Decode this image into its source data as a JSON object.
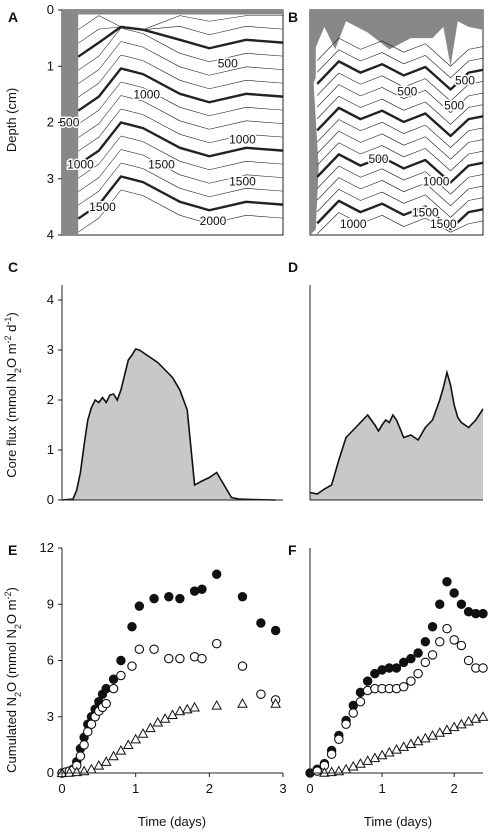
{
  "panels": {
    "a": "A",
    "b": "B",
    "c": "C",
    "d": "D",
    "e": "E",
    "f": "F"
  },
  "axes": {
    "depth_label": "Depth (cm)",
    "flux_label_parts": [
      "Core flux (mmol N",
      "2",
      "O m",
      "-2",
      " d",
      "-1",
      ")"
    ],
    "cum_label_parts": [
      "Cumulated N",
      "2",
      "O (mmol N",
      "2",
      "O m",
      "-2",
      ")"
    ],
    "time_label": "Time (days)",
    "depth_ticks": [
      "0",
      "1",
      "2",
      "3",
      "4"
    ],
    "flux_ticks": [
      "0",
      "1",
      "2",
      "3",
      "4"
    ],
    "cum_ticks": [
      "0",
      "3",
      "6",
      "9",
      "12"
    ],
    "time_ticks_left": [
      "0",
      "1",
      "2",
      "3"
    ],
    "time_ticks_right": [
      "0",
      "1",
      "2"
    ]
  },
  "chart_data": [
    {
      "panel": "A",
      "type": "contour",
      "ylabel": "Depth (cm)",
      "xlim": [
        0,
        3
      ],
      "ylim": [
        0,
        4
      ],
      "contour_labels": [
        {
          "label": "500",
          "x": 2.25,
          "y": 0.95
        },
        {
          "label": "1000",
          "x": 1.15,
          "y": 1.5
        },
        {
          "label": "500",
          "x": 0.1,
          "y": 2.0
        },
        {
          "label": "1000",
          "x": 0.25,
          "y": 2.75
        },
        {
          "label": "1500",
          "x": 1.35,
          "y": 2.75
        },
        {
          "label": "1000",
          "x": 2.45,
          "y": 2.3
        },
        {
          "label": "1500",
          "x": 2.45,
          "y": 3.05
        },
        {
          "label": "1500",
          "x": 0.55,
          "y": 3.5
        },
        {
          "label": "2000",
          "x": 2.05,
          "y": 3.75
        }
      ],
      "bold_levels": [
        500,
        1000,
        1500,
        2000
      ]
    },
    {
      "panel": "B",
      "type": "contour",
      "xlim": [
        0,
        2.4
      ],
      "ylim": [
        0,
        4
      ],
      "contour_labels": [
        {
          "label": "500",
          "x": 2.15,
          "y": 1.25
        },
        {
          "label": "500",
          "x": 1.35,
          "y": 1.45
        },
        {
          "label": "500",
          "x": 2.0,
          "y": 1.7
        },
        {
          "label": "500",
          "x": 0.95,
          "y": 2.65
        },
        {
          "label": "1000",
          "x": 1.75,
          "y": 3.05
        },
        {
          "label": "1000",
          "x": 0.6,
          "y": 3.8
        },
        {
          "label": "1500",
          "x": 1.6,
          "y": 3.6
        },
        {
          "label": "1500",
          "x": 1.85,
          "y": 3.8
        }
      ],
      "bold_levels": [
        500,
        1000,
        1500
      ]
    },
    {
      "panel": "C",
      "type": "area",
      "ylabel": "Core flux (mmol N2O m-2 d-1)",
      "xlim": [
        0,
        3
      ],
      "ylim": [
        0,
        4.3
      ],
      "x": [
        0,
        0.15,
        0.2,
        0.25,
        0.3,
        0.35,
        0.4,
        0.45,
        0.5,
        0.55,
        0.6,
        0.65,
        0.7,
        0.75,
        0.8,
        0.85,
        0.9,
        0.95,
        1.0,
        1.05,
        1.1,
        1.15,
        1.2,
        1.3,
        1.4,
        1.5,
        1.6,
        1.7,
        1.8,
        1.9,
        2.0,
        2.1,
        2.2,
        2.3,
        2.4,
        2.6,
        2.9
      ],
      "y": [
        0,
        0.02,
        0.2,
        0.55,
        1.1,
        1.6,
        1.85,
        2.0,
        1.95,
        2.05,
        1.95,
        2.1,
        2.12,
        2.0,
        2.2,
        2.5,
        2.8,
        2.9,
        3.02,
        3.0,
        2.95,
        2.9,
        2.85,
        2.75,
        2.6,
        2.45,
        2.2,
        1.8,
        0.3,
        0.38,
        0.45,
        0.55,
        0.3,
        0.05,
        0.02,
        0.01,
        0.0
      ]
    },
    {
      "panel": "D",
      "type": "area",
      "xlim": [
        0,
        2.4
      ],
      "ylim": [
        0,
        4.3
      ],
      "x": [
        0,
        0.1,
        0.2,
        0.3,
        0.4,
        0.5,
        0.6,
        0.7,
        0.8,
        0.9,
        0.95,
        1.0,
        1.05,
        1.1,
        1.15,
        1.2,
        1.3,
        1.4,
        1.5,
        1.6,
        1.7,
        1.8,
        1.85,
        1.9,
        1.95,
        2.0,
        2.05,
        2.1,
        2.2,
        2.3,
        2.4
      ],
      "y": [
        0.15,
        0.12,
        0.22,
        0.3,
        0.8,
        1.25,
        1.4,
        1.55,
        1.7,
        1.5,
        1.38,
        1.5,
        1.6,
        1.55,
        1.7,
        1.6,
        1.25,
        1.3,
        1.2,
        1.45,
        1.6,
        2.0,
        2.25,
        2.55,
        2.3,
        1.9,
        1.65,
        1.55,
        1.45,
        1.6,
        1.82
      ]
    },
    {
      "panel": "E",
      "type": "scatter",
      "ylabel": "Cumulated N2O (mmol N2O m-2)",
      "xlabel": "Time (days)",
      "xlim": [
        0,
        3
      ],
      "ylim": [
        0,
        12
      ],
      "series": [
        {
          "marker": "filled-circle",
          "x": [
            0,
            0.05,
            0.1,
            0.15,
            0.2,
            0.25,
            0.3,
            0.35,
            0.4,
            0.45,
            0.5,
            0.55,
            0.6,
            0.7,
            0.8,
            0.95,
            1.05,
            1.25,
            1.45,
            1.6,
            1.8,
            1.9,
            2.1,
            2.45,
            2.7,
            2.9
          ],
          "y": [
            0,
            0.05,
            0.1,
            0.2,
            0.6,
            1.3,
            1.9,
            2.6,
            3.0,
            3.4,
            3.8,
            4.2,
            4.5,
            5.0,
            6.0,
            7.8,
            8.9,
            9.3,
            9.4,
            9.3,
            9.7,
            9.8,
            10.6,
            9.4,
            8.0,
            7.6
          ]
        },
        {
          "marker": "open-circle",
          "x": [
            0,
            0.05,
            0.1,
            0.15,
            0.2,
            0.25,
            0.3,
            0.35,
            0.4,
            0.45,
            0.5,
            0.55,
            0.6,
            0.7,
            0.8,
            0.95,
            1.05,
            1.25,
            1.45,
            1.6,
            1.8,
            1.9,
            2.1,
            2.45,
            2.7,
            2.9
          ],
          "y": [
            0,
            0.05,
            0.1,
            0.15,
            0.4,
            0.9,
            1.5,
            2.2,
            2.6,
            3.0,
            3.3,
            3.5,
            3.7,
            4.5,
            5.2,
            5.7,
            6.6,
            6.6,
            6.1,
            6.1,
            6.2,
            6.1,
            6.9,
            5.7,
            4.2,
            3.9
          ]
        },
        {
          "marker": "open-triangle",
          "x": [
            0,
            0.1,
            0.2,
            0.3,
            0.4,
            0.5,
            0.6,
            0.7,
            0.8,
            0.9,
            1.0,
            1.1,
            1.2,
            1.3,
            1.4,
            1.5,
            1.6,
            1.7,
            1.8,
            2.1,
            2.45,
            2.9
          ],
          "y": [
            0,
            0.02,
            0.05,
            0.1,
            0.2,
            0.4,
            0.6,
            0.9,
            1.2,
            1.5,
            1.8,
            2.1,
            2.4,
            2.7,
            2.9,
            3.1,
            3.3,
            3.4,
            3.5,
            3.6,
            3.7,
            3.7
          ]
        }
      ]
    },
    {
      "panel": "F",
      "type": "scatter",
      "xlabel": "Time (days)",
      "xlim": [
        0,
        2.4
      ],
      "ylim": [
        0,
        12
      ],
      "series": [
        {
          "marker": "filled-circle",
          "x": [
            0,
            0.1,
            0.2,
            0.3,
            0.4,
            0.5,
            0.6,
            0.7,
            0.8,
            0.9,
            1.0,
            1.1,
            1.2,
            1.3,
            1.4,
            1.5,
            1.6,
            1.7,
            1.8,
            1.9,
            2.0,
            2.1,
            2.2,
            2.3,
            2.4
          ],
          "y": [
            0,
            0.2,
            0.5,
            1.2,
            2.0,
            2.8,
            3.6,
            4.3,
            4.9,
            5.3,
            5.5,
            5.6,
            5.6,
            5.9,
            6.1,
            6.4,
            7.0,
            7.8,
            9.0,
            10.2,
            9.6,
            9.0,
            8.6,
            8.5,
            8.5
          ]
        },
        {
          "marker": "open-circle",
          "x": [
            0.1,
            0.2,
            0.3,
            0.4,
            0.5,
            0.6,
            0.7,
            0.8,
            0.9,
            1.0,
            1.1,
            1.2,
            1.3,
            1.4,
            1.5,
            1.6,
            1.7,
            1.8,
            1.9,
            2.0,
            2.1,
            2.2,
            2.3,
            2.4
          ],
          "y": [
            0.1,
            0.4,
            1.0,
            1.8,
            2.6,
            3.2,
            3.8,
            4.4,
            4.5,
            4.5,
            4.5,
            4.5,
            4.6,
            4.9,
            5.3,
            5.9,
            6.3,
            7.0,
            7.7,
            7.1,
            6.8,
            6.0,
            5.6,
            5.6
          ]
        },
        {
          "marker": "open-triangle",
          "x": [
            0.2,
            0.3,
            0.4,
            0.5,
            0.6,
            0.7,
            0.8,
            0.9,
            1.0,
            1.1,
            1.2,
            1.3,
            1.4,
            1.5,
            1.6,
            1.7,
            1.8,
            1.9,
            2.0,
            2.1,
            2.2,
            2.3,
            2.4
          ],
          "y": [
            0.02,
            0.05,
            0.1,
            0.2,
            0.35,
            0.5,
            0.65,
            0.8,
            0.95,
            1.1,
            1.25,
            1.4,
            1.55,
            1.7,
            1.85,
            2.0,
            2.15,
            2.3,
            2.45,
            2.6,
            2.75,
            2.9,
            3.0
          ]
        }
      ]
    }
  ]
}
